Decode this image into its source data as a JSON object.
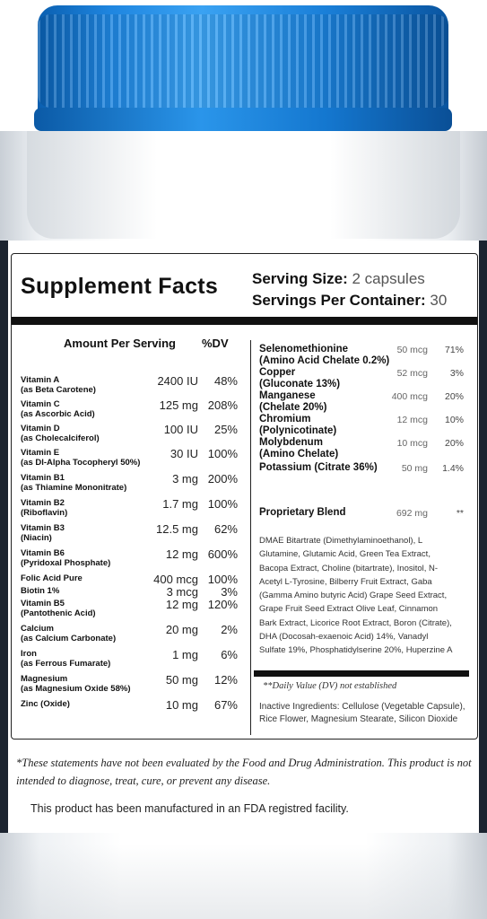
{
  "title": "Supplement Facts",
  "serving_size": {
    "label": "Serving Size:",
    "value": "2 capsules"
  },
  "servings_per_container": {
    "label": "Servings Per Container:",
    "value": "30"
  },
  "columns": {
    "amount": "Amount Per Serving",
    "dv": "%DV"
  },
  "vitamins": [
    {
      "name": "Vitamin A",
      "sub": "(as Beta Carotene)",
      "amount": "2400 IU",
      "dv": "48%"
    },
    {
      "name": "Vitamin C",
      "sub": "(as Ascorbic Acid)",
      "amount": "125 mg",
      "dv": "208%"
    },
    {
      "name": "Vitamin D",
      "sub": "(as Cholecalciferol)",
      "amount": "100 IU",
      "dv": "25%"
    },
    {
      "name": "Vitamin E",
      "sub": "(as Dl-Alpha Tocopheryl 50%)",
      "amount": "30 IU",
      "dv": "100%"
    },
    {
      "name": "Vitamin B1",
      "sub": "(as Thiamine Mononitrate)",
      "amount": "3 mg",
      "dv": "200%"
    },
    {
      "name": "Vitamin B2",
      "sub": "(Riboflavin)",
      "amount": "1.7 mg",
      "dv": "100%"
    },
    {
      "name": "Vitamin B3",
      "sub": "(Niacin)",
      "amount": "12.5 mg",
      "dv": "62%"
    },
    {
      "name": "Vitamin B6",
      "sub": "(Pyridoxal Phosphate)",
      "amount": "12 mg",
      "dv": "600%"
    },
    {
      "name": "Folic Acid Pure",
      "sub": "",
      "amount": "400 mcg",
      "dv": "100%"
    },
    {
      "name": "Biotin 1%",
      "sub": "",
      "amount": "3 mcg",
      "dv": "3%"
    },
    {
      "name": "Vitamin B5",
      "sub": "(Pantothenic Acid)",
      "amount": "12 mg",
      "dv": "120%"
    },
    {
      "name": "Calcium",
      "sub": "(as Calcium Carbonate)",
      "amount": "20 mg",
      "dv": "2%"
    },
    {
      "name": "Iron",
      "sub": "(as Ferrous Fumarate)",
      "amount": "1 mg",
      "dv": "6%"
    },
    {
      "name": "Magnesium",
      "sub": "(as Magnesium Oxide 58%)",
      "amount": "50 mg",
      "dv": "12%"
    },
    {
      "name": "Zinc (Oxide)",
      "sub": "",
      "amount": "10 mg",
      "dv": "67%"
    }
  ],
  "minerals": [
    {
      "name": "Selenomethionine",
      "sub": "(Amino Acid Chelate 0.2%)",
      "amount": "50 mcg",
      "dv": "71%"
    },
    {
      "name": "Copper",
      "sub": "(Gluconate 13%)",
      "amount": "52 mcg",
      "dv": "3%"
    },
    {
      "name": "Manganese",
      "sub": "(Chelate 20%)",
      "amount": "400 mcg",
      "dv": "20%"
    },
    {
      "name": "Chromium",
      "sub": "(Polynicotinate)",
      "amount": "12 mcg",
      "dv": "10%"
    },
    {
      "name": "Molybdenum",
      "sub": "(Amino Chelate)",
      "amount": "10 mcg",
      "dv": "20%"
    },
    {
      "name": "Potassium (Citrate 36%)",
      "sub": "",
      "amount": "50 mg",
      "dv": "1.4%"
    }
  ],
  "blend": {
    "name": "Proprietary Blend",
    "amount": "692 mg",
    "dv": "**"
  },
  "blend_ingredients": "DMAE Bitartrate (Dimethylaminoethanol), L Glutamine, Glutamic Acid, Green Tea Extract, Bacopa Extract, Choline (bitartrate), Inositol, N-Acetyl L-Tyrosine, Bilberry Fruit Extract, Gaba (Gamma Amino butyric Acid) Grape Seed Extract, Grape Fruit Seed Extract Olive Leaf, Cinnamon Bark Extract, Licorice Root Extract, Boron (Citrate), DHA (Docosah-exaenoic Acid) 14%, Vanadyl Sulfate 19%, Phosphatidylserine 20%, Huperzine A",
  "dv_note": "**Daily Value (DV) not established",
  "inactive": "Inactive Ingredients: Cellulose (Vegetable Capsule), Rice Flower, Magnesium Stearate, Silicon Dioxide",
  "disclaimer_1": "*These statements have not been evaluated by the Food and Drug Administration. This product is not intended to diagnose, treat, cure, or prevent any disease.",
  "disclaimer_2": "This product has been manufactured in an FDA registred facility."
}
